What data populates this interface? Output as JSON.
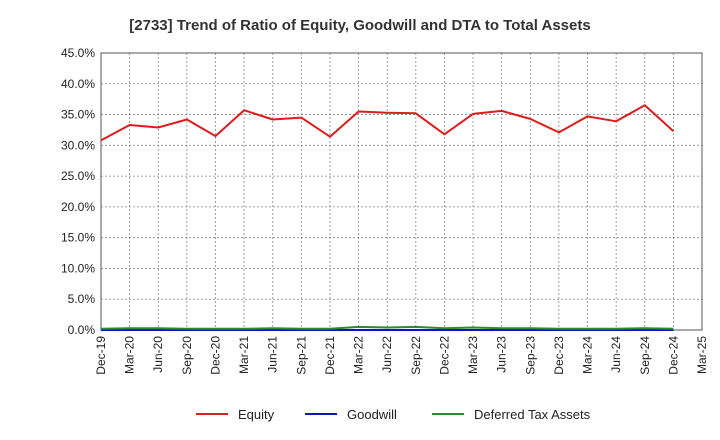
{
  "chart_data": {
    "type": "line",
    "title": "[2733]  Trend of Ratio of Equity, Goodwill and DTA to Total Assets",
    "xlabel": "",
    "ylabel": "",
    "ylim": [
      0,
      45
    ],
    "y_ticks": [
      "0.0%",
      "5.0%",
      "10.0%",
      "15.0%",
      "20.0%",
      "25.0%",
      "30.0%",
      "35.0%",
      "40.0%",
      "45.0%"
    ],
    "categories": [
      "Dec-19",
      "Mar-20",
      "Jun-20",
      "Sep-20",
      "Dec-20",
      "Mar-21",
      "Jun-21",
      "Sep-21",
      "Dec-21",
      "Mar-22",
      "Jun-22",
      "Sep-22",
      "Dec-22",
      "Mar-23",
      "Jun-23",
      "Sep-23",
      "Dec-23",
      "Mar-24",
      "Jun-24",
      "Sep-24",
      "Dec-24",
      "Mar-25"
    ],
    "grid": true,
    "legend_position": "bottom",
    "series": [
      {
        "name": "Equity",
        "color": "#dd1c1c",
        "values": [
          30.8,
          33.3,
          32.9,
          34.2,
          31.5,
          35.7,
          34.2,
          34.5,
          31.4,
          35.5,
          35.3,
          35.2,
          31.8,
          35.1,
          35.6,
          34.3,
          32.1,
          34.7,
          33.9,
          36.5,
          32.3,
          null
        ]
      },
      {
        "name": "Goodwill",
        "color": "#0a14c8",
        "values": [
          0,
          0,
          0,
          0,
          0,
          0,
          0,
          0,
          0,
          0,
          0,
          0,
          0,
          0,
          0,
          0,
          0,
          0,
          0,
          0,
          0,
          null
        ]
      },
      {
        "name": "Deferred Tax Assets",
        "color": "#2a8c2a",
        "values": [
          0.2,
          0.3,
          0.3,
          0.2,
          0.2,
          0.2,
          0.3,
          0.2,
          0.2,
          0.5,
          0.4,
          0.5,
          0.3,
          0.4,
          0.3,
          0.3,
          0.2,
          0.2,
          0.2,
          0.3,
          0.2,
          null
        ]
      }
    ]
  }
}
